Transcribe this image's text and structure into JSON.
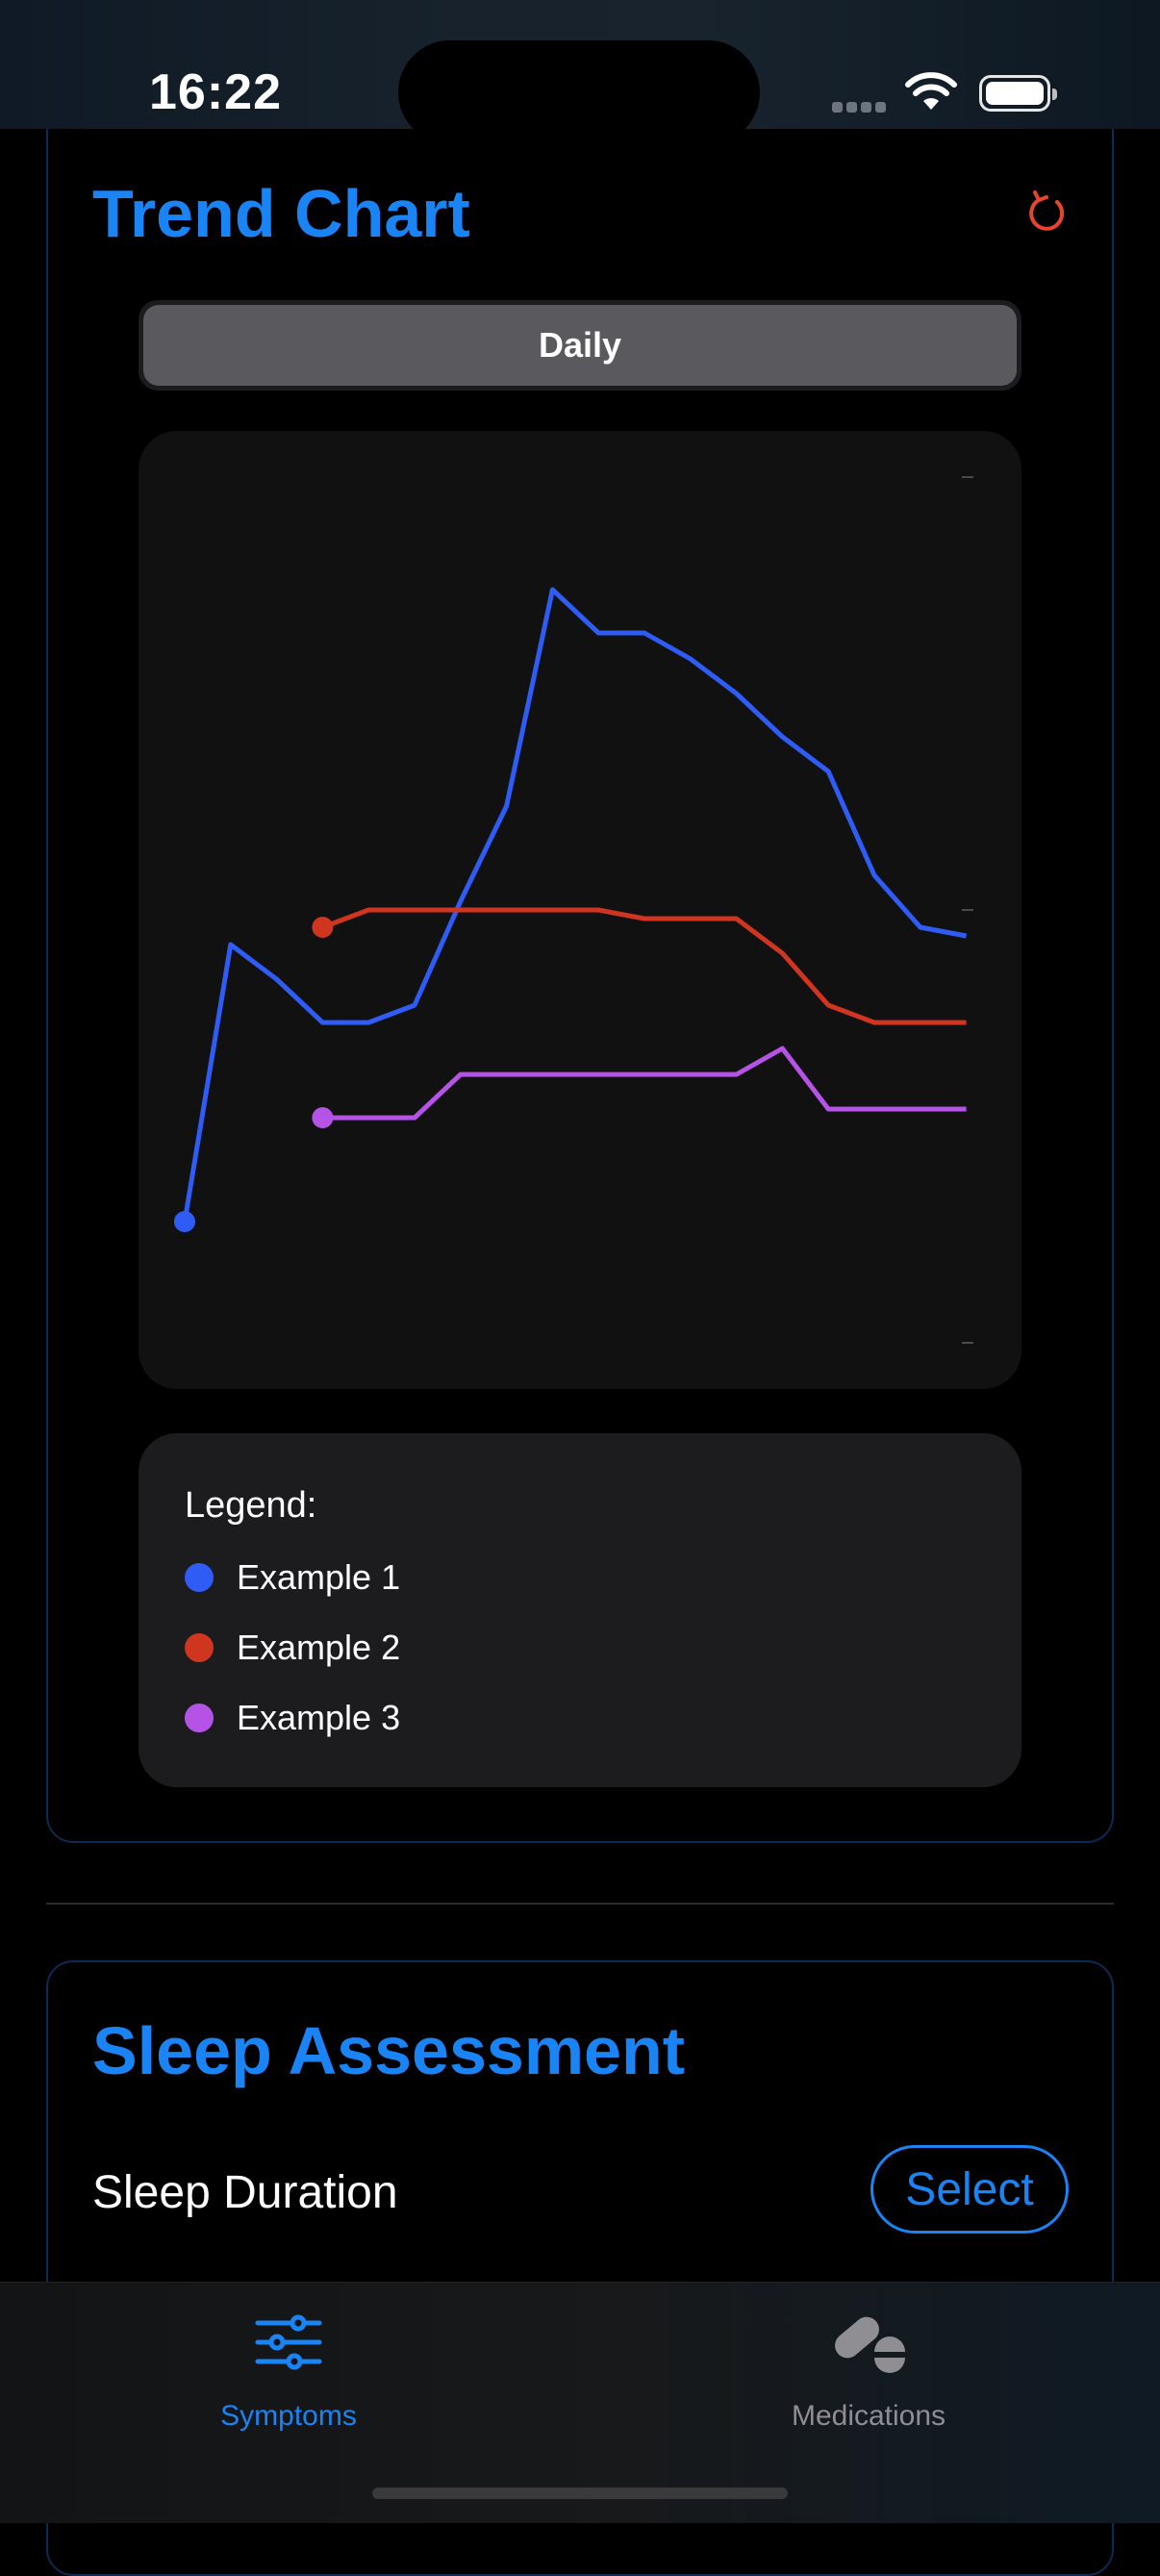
{
  "status_bar": {
    "time": "16:22"
  },
  "trend": {
    "title": "Trend Chart",
    "segment_label": "Daily",
    "legend_title": "Legend:"
  },
  "chart_data": {
    "type": "line",
    "ylim": [
      0,
      10
    ],
    "grid": false,
    "series": [
      {
        "name": "Example 1",
        "color": "#2f5cf5",
        "start": 0,
        "values": [
          1.4,
          4.6,
          4.2,
          3.7,
          3.7,
          3.9,
          5.1,
          6.2,
          8.7,
          8.2,
          8.2,
          7.9,
          7.5,
          7.0,
          6.6,
          5.4,
          4.8,
          4.7
        ]
      },
      {
        "name": "Example 2",
        "color": "#d0351f",
        "start": 3,
        "values": [
          4.8,
          5.0,
          5.0,
          5.0,
          5.0,
          5.0,
          5.0,
          4.9,
          4.9,
          4.9,
          4.5,
          3.9,
          3.7,
          3.7,
          3.7
        ]
      },
      {
        "name": "Example 3",
        "color": "#b553e6",
        "start": 3,
        "values": [
          2.6,
          2.6,
          2.6,
          3.1,
          3.1,
          3.1,
          3.1,
          3.1,
          3.1,
          3.1,
          3.4,
          2.7,
          2.7,
          2.7,
          2.7
        ]
      }
    ]
  },
  "sleep": {
    "title": "Sleep Assessment",
    "duration_label": "Sleep Duration",
    "select_label": "Select"
  },
  "tabs": [
    {
      "label": "Symptoms",
      "icon": "sliders-icon",
      "active": true
    },
    {
      "label": "Medications",
      "icon": "pills-icon",
      "active": false
    }
  ]
}
